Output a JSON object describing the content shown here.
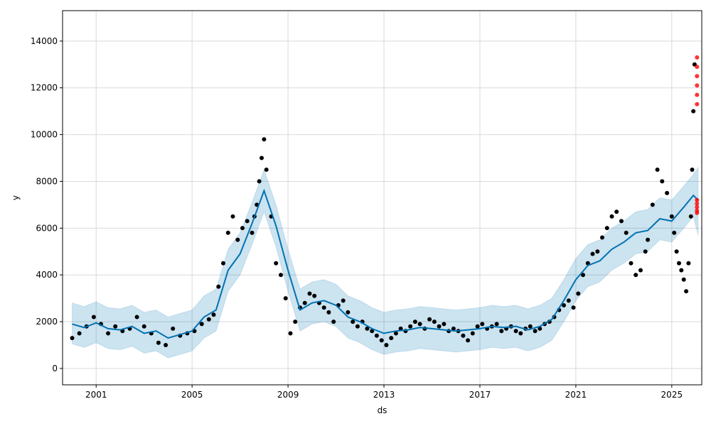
{
  "chart_data": {
    "type": "line",
    "title": "",
    "xlabel": "ds",
    "ylabel": "y",
    "xlim": [
      1999.6,
      2026.25
    ],
    "ylim": [
      -700,
      15300
    ],
    "grid": true,
    "x_ticks": [
      {
        "value": 2001,
        "label": "2001"
      },
      {
        "value": 2005,
        "label": "2005"
      },
      {
        "value": 2009,
        "label": "2009"
      },
      {
        "value": 2013,
        "label": "2013"
      },
      {
        "value": 2017,
        "label": "2017"
      },
      {
        "value": 2021,
        "label": "2021"
      },
      {
        "value": 2025,
        "label": "2025"
      }
    ],
    "y_ticks": [
      {
        "value": 0,
        "label": "0"
      },
      {
        "value": 2000,
        "label": "2000"
      },
      {
        "value": 4000,
        "label": "4000"
      },
      {
        "value": 6000,
        "label": "6000"
      },
      {
        "value": 8000,
        "label": "8000"
      },
      {
        "value": 10000,
        "label": "10000"
      },
      {
        "value": 12000,
        "label": "12000"
      },
      {
        "value": 14000,
        "label": "14000"
      }
    ],
    "colors": {
      "forecast_line": "#0072B2",
      "uncertainty_band": "#0072B2",
      "observed_points": "#000000",
      "test_points": "#ff0000",
      "grid": "#d9d9d9"
    },
    "forecast": {
      "x": [
        2000.0,
        2000.5,
        2001.0,
        2001.5,
        2002.0,
        2002.5,
        2003.0,
        2003.5,
        2004.0,
        2004.5,
        2005.0,
        2005.5,
        2006.0,
        2006.5,
        2007.0,
        2007.5,
        2008.0,
        2008.5,
        2009.0,
        2009.5,
        2010.0,
        2010.5,
        2011.0,
        2011.5,
        2012.0,
        2012.5,
        2013.0,
        2013.5,
        2014.0,
        2014.5,
        2015.0,
        2015.5,
        2016.0,
        2016.5,
        2017.0,
        2017.5,
        2018.0,
        2018.5,
        2019.0,
        2019.5,
        2020.0,
        2020.5,
        2021.0,
        2021.5,
        2022.0,
        2022.5,
        2023.0,
        2023.5,
        2024.0,
        2024.5,
        2025.0,
        2025.5,
        2025.9,
        2026.1
      ],
      "yhat": [
        1900,
        1750,
        1950,
        1700,
        1650,
        1800,
        1500,
        1600,
        1300,
        1450,
        1600,
        2200,
        2500,
        4200,
        4900,
        6200,
        7600,
        6100,
        4200,
        2500,
        2800,
        2900,
        2700,
        2200,
        2000,
        1700,
        1500,
        1600,
        1650,
        1750,
        1700,
        1650,
        1600,
        1650,
        1700,
        1800,
        1750,
        1800,
        1650,
        1800,
        2100,
        2900,
        3800,
        4400,
        4600,
        5100,
        5400,
        5800,
        5900,
        6400,
        6300,
        6900,
        7400,
        7200
      ],
      "yhat_lower": [
        1050,
        900,
        1100,
        850,
        800,
        950,
        650,
        750,
        450,
        600,
        750,
        1300,
        1600,
        3300,
        4000,
        5300,
        6700,
        5200,
        3300,
        1600,
        1900,
        2000,
        1800,
        1300,
        1100,
        800,
        600,
        700,
        750,
        850,
        800,
        750,
        700,
        750,
        800,
        900,
        850,
        900,
        750,
        900,
        1200,
        2000,
        2900,
        3500,
        3700,
        4200,
        4500,
        4900,
        5000,
        5500,
        5400,
        6000,
        6500,
        5700
      ],
      "yhat_upper": [
        2800,
        2650,
        2850,
        2600,
        2550,
        2700,
        2400,
        2500,
        2200,
        2350,
        2500,
        3100,
        3400,
        5100,
        5800,
        7100,
        8500,
        7000,
        5100,
        3400,
        3700,
        3800,
        3600,
        3100,
        2900,
        2600,
        2400,
        2500,
        2550,
        2650,
        2600,
        2550,
        2500,
        2550,
        2600,
        2700,
        2650,
        2700,
        2550,
        2700,
        3000,
        3800,
        4700,
        5300,
        5500,
        6000,
        6300,
        6700,
        6800,
        7300,
        7200,
        7800,
        8300,
        8600
      ]
    },
    "observed": {
      "x": [
        2000.0,
        2000.3,
        2000.6,
        2000.9,
        2001.2,
        2001.5,
        2001.8,
        2002.1,
        2002.4,
        2002.7,
        2003.0,
        2003.3,
        2003.6,
        2003.9,
        2004.2,
        2004.5,
        2004.8,
        2005.1,
        2005.4,
        2005.7,
        2005.9,
        2006.1,
        2006.3,
        2006.5,
        2006.7,
        2006.9,
        2007.1,
        2007.3,
        2007.5,
        2007.6,
        2007.7,
        2007.8,
        2007.9,
        2008.0,
        2008.1,
        2008.3,
        2008.5,
        2008.7,
        2008.9,
        2009.1,
        2009.3,
        2009.5,
        2009.7,
        2009.9,
        2010.1,
        2010.3,
        2010.5,
        2010.7,
        2010.9,
        2011.1,
        2011.3,
        2011.5,
        2011.7,
        2011.9,
        2012.1,
        2012.3,
        2012.5,
        2012.7,
        2012.9,
        2013.1,
        2013.3,
        2013.5,
        2013.7,
        2013.9,
        2014.1,
        2014.3,
        2014.5,
        2014.7,
        2014.9,
        2015.1,
        2015.3,
        2015.5,
        2015.7,
        2015.9,
        2016.1,
        2016.3,
        2016.5,
        2016.7,
        2016.9,
        2017.1,
        2017.3,
        2017.5,
        2017.7,
        2017.9,
        2018.1,
        2018.3,
        2018.5,
        2018.7,
        2018.9,
        2019.1,
        2019.3,
        2019.5,
        2019.7,
        2019.9,
        2020.1,
        2020.3,
        2020.5,
        2020.7,
        2020.9,
        2021.1,
        2021.3,
        2021.5,
        2021.7,
        2021.9,
        2022.1,
        2022.3,
        2022.5,
        2022.7,
        2022.9,
        2023.1,
        2023.3,
        2023.5,
        2023.7,
        2023.9,
        2024.0,
        2024.2,
        2024.4,
        2024.6,
        2024.8,
        2025.0,
        2025.1,
        2025.2,
        2025.3,
        2025.4,
        2025.5,
        2025.6,
        2025.7,
        2025.8,
        2025.85,
        2025.9,
        2025.95
      ],
      "y": [
        1300,
        1500,
        1800,
        2200,
        1900,
        1500,
        1800,
        1600,
        1700,
        2200,
        1800,
        1500,
        1100,
        1000,
        1700,
        1400,
        1500,
        1600,
        1900,
        2100,
        2300,
        3500,
        4500,
        5800,
        6500,
        5500,
        6000,
        6300,
        5800,
        6500,
        7000,
        8000,
        9000,
        9800,
        8500,
        6500,
        4500,
        4000,
        3000,
        1500,
        2000,
        2600,
        2800,
        3200,
        3100,
        2800,
        2600,
        2400,
        2000,
        2700,
        2900,
        2400,
        2000,
        1800,
        2000,
        1700,
        1600,
        1400,
        1200,
        1000,
        1300,
        1500,
        1700,
        1600,
        1800,
        2000,
        1900,
        1700,
        2100,
        2000,
        1800,
        1900,
        1600,
        1700,
        1600,
        1400,
        1200,
        1500,
        1800,
        1900,
        1700,
        1800,
        1900,
        1600,
        1700,
        1800,
        1600,
        1500,
        1700,
        1800,
        1600,
        1700,
        1900,
        2000,
        2200,
        2500,
        2700,
        2900,
        2600,
        3200,
        4000,
        4500,
        4900,
        5000,
        5600,
        6000,
        6500,
        6700,
        6300,
        5800,
        4500,
        4000,
        4200,
        5000,
        5500,
        7000,
        8500,
        8000,
        7500,
        6500,
        5800,
        5000,
        4500,
        4200,
        3800,
        3300,
        4500,
        6500,
        8500,
        11000,
        13000
      ]
    },
    "test": {
      "x": [
        2026.05,
        2026.05,
        2026.05,
        2026.05,
        2026.05,
        2026.05,
        2026.05,
        2026.05,
        2026.05,
        2026.05,
        2026.05
      ],
      "y": [
        13300,
        12900,
        12500,
        12100,
        11700,
        11300,
        7200,
        7050,
        6900,
        6750,
        6650
      ]
    }
  }
}
